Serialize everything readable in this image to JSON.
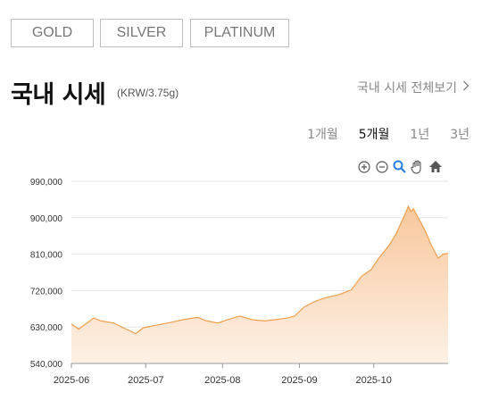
{
  "tabs": [
    {
      "label": "GOLD",
      "active": true
    },
    {
      "label": "SILVER",
      "active": false
    },
    {
      "label": "PLATINUM",
      "active": false
    }
  ],
  "header": {
    "title": "국내 시세",
    "unit": "(KRW/3.75g)",
    "view_all": "국내 시세 전체보기",
    "view_all_icon": "chevron-right-icon"
  },
  "periods": [
    {
      "label": "1개월",
      "active": false
    },
    {
      "label": "5개월",
      "active": true
    },
    {
      "label": "1년",
      "active": false
    },
    {
      "label": "3년",
      "active": false
    }
  ],
  "toolbar": [
    "zoom-in-icon",
    "zoom-out-icon",
    "magnifier-reset-icon",
    "pan-hand-icon",
    "home-icon"
  ],
  "colors": {
    "accent": "#e8873a",
    "line": "#f0a050",
    "fill_top": "#f8c79c",
    "fill_bottom": "#fdf1e6"
  },
  "chart_data": {
    "type": "area",
    "xlabel": "",
    "ylabel": "",
    "y_ticks": [
      "540,000",
      "630,000",
      "720,000",
      "810,000",
      "900,000",
      "990,000"
    ],
    "x_ticks": [
      "2025-06",
      "2025-07",
      "2025-08",
      "2025-09",
      "2025-10"
    ],
    "ylim": [
      540000,
      990000
    ],
    "grid": true,
    "series": [
      {
        "x": [
          "2025-06-01",
          "2025-06-04",
          "2025-06-10",
          "2025-06-13",
          "2025-06-18",
          "2025-06-23",
          "2025-06-27",
          "2025-06-30",
          "2025-07-04",
          "2025-07-10",
          "2025-07-16",
          "2025-07-22",
          "2025-07-25",
          "2025-07-30",
          "2025-08-04",
          "2025-08-08",
          "2025-08-13",
          "2025-08-18",
          "2025-08-22",
          "2025-08-27",
          "2025-08-30",
          "2025-09-03",
          "2025-09-08",
          "2025-09-12",
          "2025-09-17",
          "2025-09-22",
          "2025-09-26",
          "2025-09-30",
          "2025-10-03",
          "2025-10-07",
          "2025-10-10",
          "2025-10-13",
          "2025-10-15",
          "2025-10-16",
          "2025-10-17",
          "2025-10-20",
          "2025-10-22",
          "2025-10-24",
          "2025-10-27",
          "2025-10-29",
          "2025-10-31"
        ],
        "values": [
          637000,
          625000,
          652000,
          645000,
          640000,
          625000,
          614000,
          628000,
          633000,
          640000,
          648000,
          654000,
          646000,
          640000,
          650000,
          657000,
          648000,
          645000,
          648000,
          652000,
          657000,
          680000,
          695000,
          703000,
          710000,
          722000,
          755000,
          772000,
          800000,
          830000,
          860000,
          900000,
          928000,
          915000,
          922000,
          888000,
          865000,
          835000,
          800000,
          810000,
          812000
        ]
      }
    ]
  }
}
